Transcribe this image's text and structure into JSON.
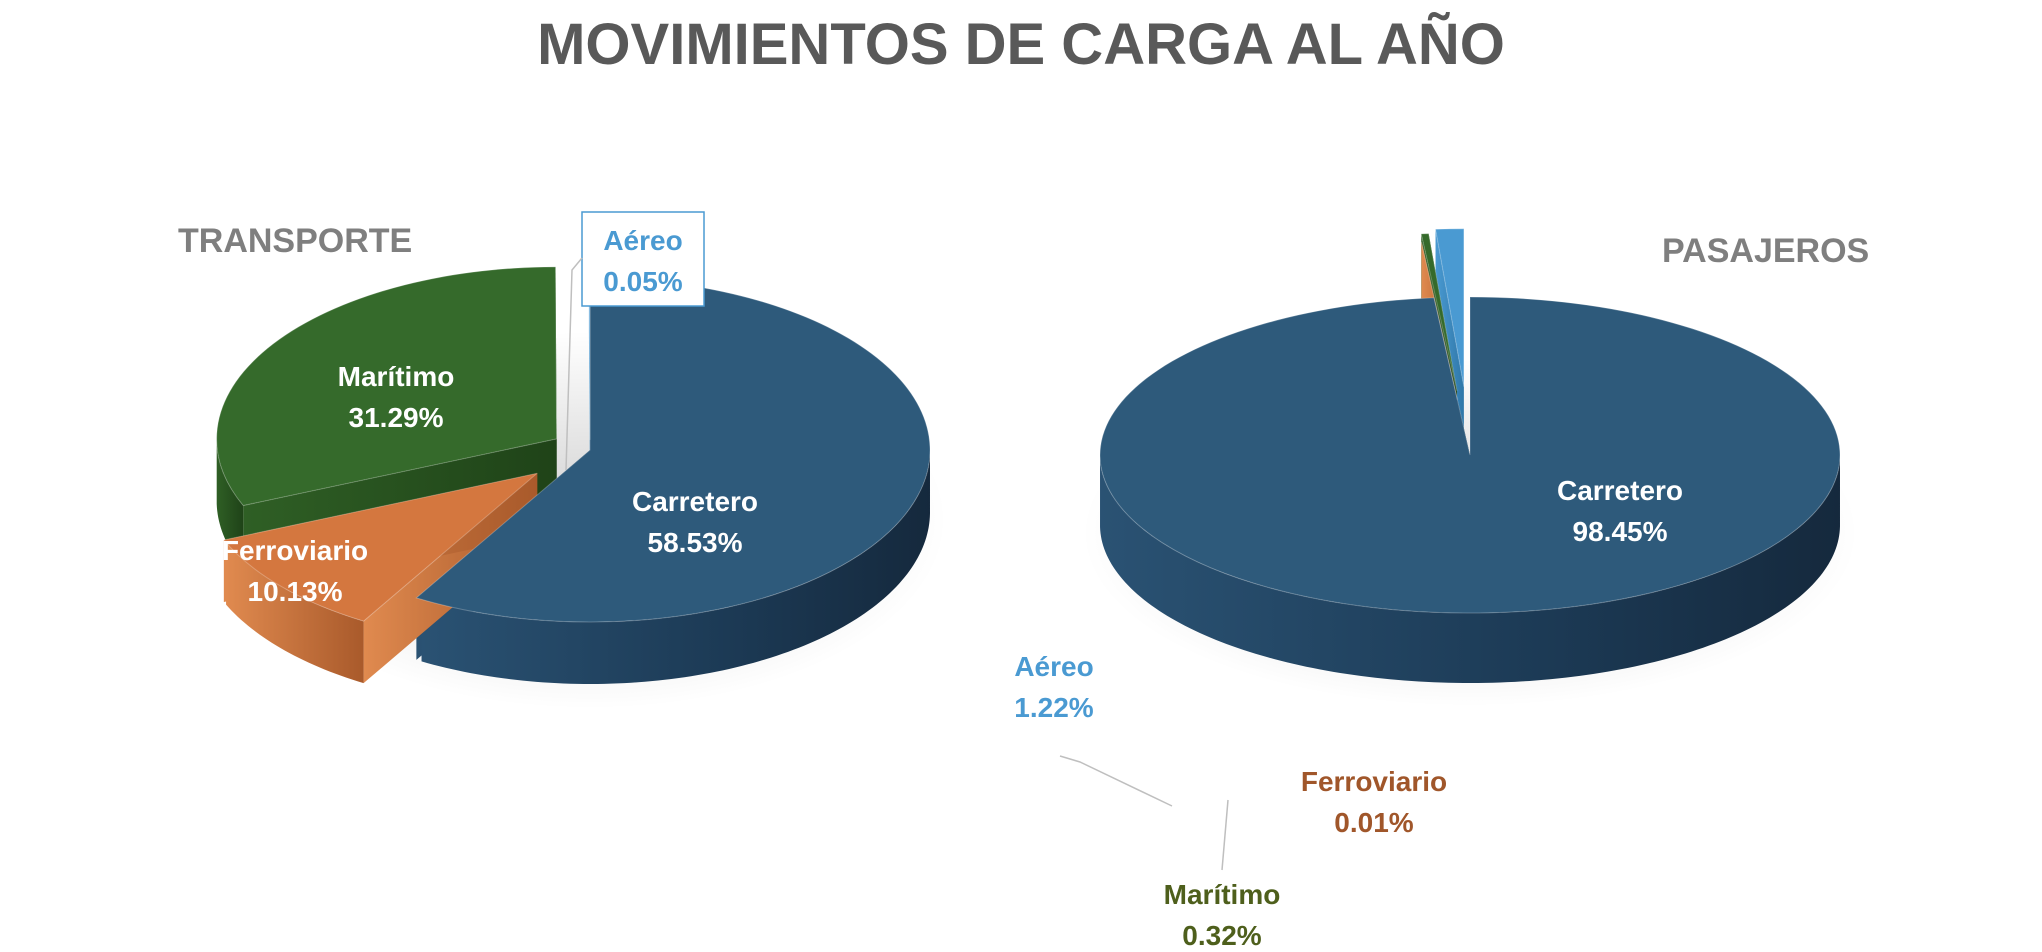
{
  "title": "MOVIMIENTOS DE CARGA AL AÑO",
  "colors": {
    "carretero": "#2e5a7b",
    "maritimo": "#356a2b",
    "ferroviario": "#d4773f",
    "aereo": "#4a9ad2",
    "title_gray": "#595959",
    "subtitle_gray": "#7f7f7f",
    "ferroviario_label": "#a0562a",
    "maritimo_label": "#4e5f1c"
  },
  "chart_data": [
    {
      "type": "pie",
      "title": "TRANSPORTE",
      "slices": [
        {
          "name": "Carretero",
          "value": 58.53,
          "label": "58.53%"
        },
        {
          "name": "Ferroviario",
          "value": 10.13,
          "label": "10.13%"
        },
        {
          "name": "Marítimo",
          "value": 31.29,
          "label": "31.29%"
        },
        {
          "name": "Aéreo",
          "value": 0.05,
          "label": "0.05%"
        }
      ]
    },
    {
      "type": "pie",
      "title": "PASAJEROS",
      "slices": [
        {
          "name": "Carretero",
          "value": 98.45,
          "label": "98.45%"
        },
        {
          "name": "Ferroviario",
          "value": 0.01,
          "label": "0.01%"
        },
        {
          "name": "Marítimo",
          "value": 0.32,
          "label": "0.32%"
        },
        {
          "name": "Aéreo",
          "value": 1.22,
          "label": "1.22%"
        }
      ]
    }
  ]
}
